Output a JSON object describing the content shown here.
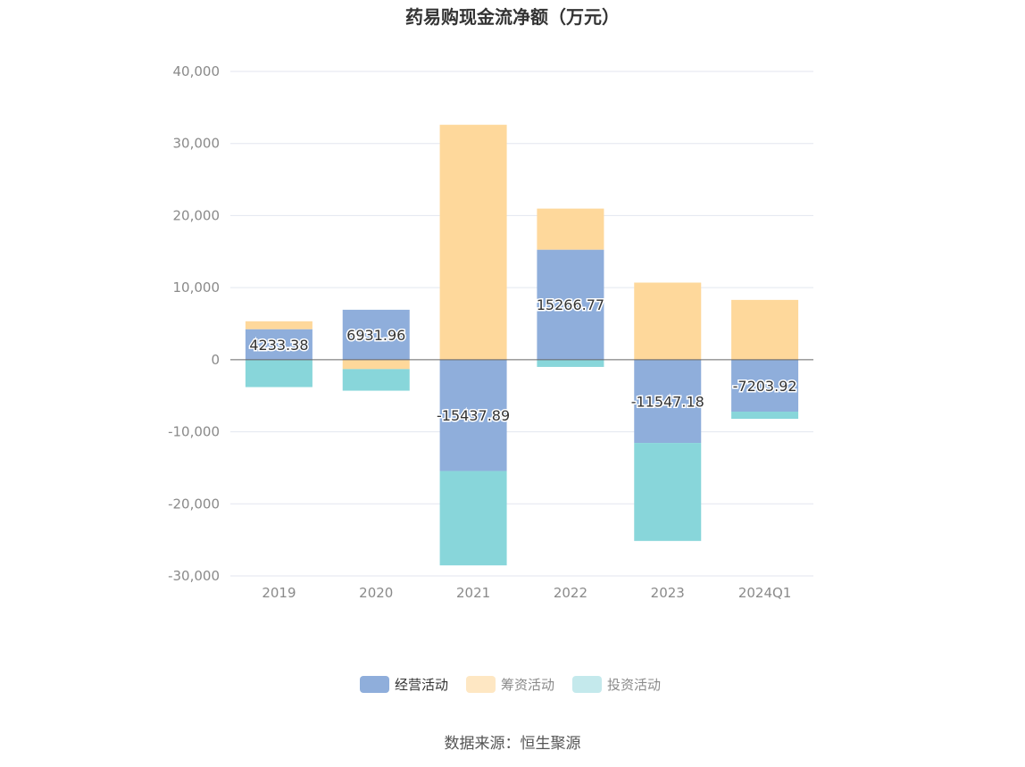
{
  "chart_data": {
    "type": "bar",
    "stacked": true,
    "title": "药易购现金流净额（万元）",
    "categories": [
      "2019",
      "2020",
      "2021",
      "2022",
      "2023",
      "2024Q1"
    ],
    "ylim": [
      -30000,
      40000
    ],
    "yticks": [
      40000,
      30000,
      20000,
      10000,
      0,
      -10000,
      -20000,
      -30000
    ],
    "ytick_labels": [
      "40,000",
      "30,000",
      "20,000",
      "10,000",
      "0",
      "-10,000",
      "-20,000",
      "-30,000"
    ],
    "grid": true,
    "legend_position": "bottom",
    "series": [
      {
        "name": "经营活动",
        "color": "#8faedb",
        "values": [
          4233.38,
          6931.96,
          -15437.89,
          15266.77,
          -11547.18,
          -7203.92
        ],
        "labels": [
          "4233.38",
          "6931.96",
          "-15437.89",
          "15266.77",
          "-11547.18",
          "-7203.92"
        ]
      },
      {
        "name": "筹资活动",
        "color": "#fed89b",
        "values": [
          1100,
          -1300,
          32600,
          5700,
          10700,
          8300
        ]
      },
      {
        "name": "投资活动",
        "color": "#88d6da",
        "values": [
          -3800,
          -3000,
          -13100,
          -1000,
          -13600,
          -1000
        ]
      }
    ],
    "legend_colors": [
      "#8faedb",
      "#fee7c3",
      "#c4e9ec"
    ]
  },
  "source": "数据来源：恒生聚源"
}
